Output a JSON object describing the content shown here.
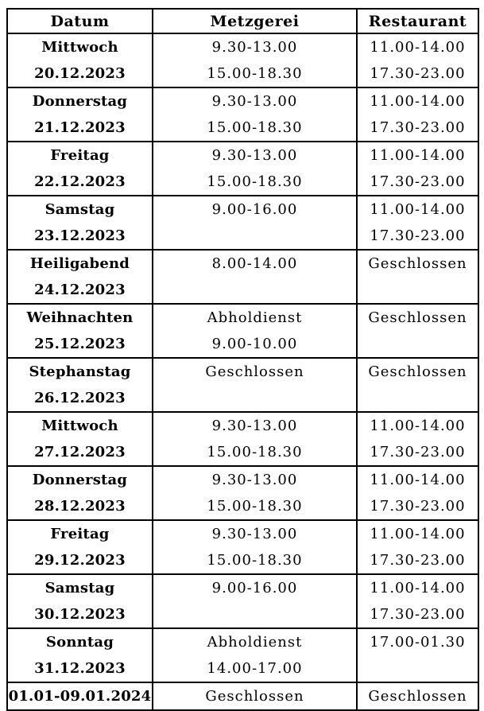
{
  "page": {
    "background_color": "#ffffff",
    "text_color": "#000000",
    "border_color": "#000000"
  },
  "table": {
    "columns": [
      {
        "key": "datum",
        "label": "Datum"
      },
      {
        "key": "metzgerei",
        "label": "Metzgerei"
      },
      {
        "key": "restaurant",
        "label": "Restaurant"
      }
    ],
    "rows": [
      {
        "datum": [
          "Mittwoch",
          "20.12.2023"
        ],
        "metzgerei": [
          "9.30-13.00",
          "15.00-18.30"
        ],
        "restaurant": [
          "11.00-14.00",
          "17.30-23.00"
        ]
      },
      {
        "datum": [
          "Donnerstag",
          "21.12.2023"
        ],
        "metzgerei": [
          "9.30-13.00",
          "15.00-18.30"
        ],
        "restaurant": [
          "11.00-14.00",
          "17.30-23.00"
        ]
      },
      {
        "datum": [
          "Freitag",
          "22.12.2023"
        ],
        "metzgerei": [
          "9.30-13.00",
          "15.00-18.30"
        ],
        "restaurant": [
          "11.00-14.00",
          "17.30-23.00"
        ]
      },
      {
        "datum": [
          "Samstag",
          "23.12.2023"
        ],
        "metzgerei": [
          "9.00-16.00"
        ],
        "restaurant": [
          "11.00-14.00",
          "17.30-23.00"
        ]
      },
      {
        "datum": [
          "Heiligabend",
          "24.12.2023"
        ],
        "metzgerei": [
          "8.00-14.00"
        ],
        "restaurant": [
          "Geschlossen"
        ]
      },
      {
        "datum": [
          "Weihnachten",
          "25.12.2023"
        ],
        "metzgerei": [
          "Abholdienst",
          "9.00-10.00"
        ],
        "restaurant": [
          "Geschlossen"
        ]
      },
      {
        "datum": [
          "Stephanstag",
          "26.12.2023"
        ],
        "metzgerei": [
          "Geschlossen"
        ],
        "restaurant": [
          "Geschlossen"
        ]
      },
      {
        "datum": [
          "Mittwoch",
          "27.12.2023"
        ],
        "metzgerei": [
          "9.30-13.00",
          "15.00-18.30"
        ],
        "restaurant": [
          "11.00-14.00",
          "17.30-23.00"
        ]
      },
      {
        "datum": [
          "Donnerstag",
          "28.12.2023"
        ],
        "metzgerei": [
          "9.30-13.00",
          "15.00-18.30"
        ],
        "restaurant": [
          "11.00-14.00",
          "17.30-23.00"
        ]
      },
      {
        "datum": [
          "Freitag",
          "29.12.2023"
        ],
        "metzgerei": [
          "9.30-13.00",
          "15.00-18.30"
        ],
        "restaurant": [
          "11.00-14.00",
          "17.30-23.00"
        ]
      },
      {
        "datum": [
          "Samstag",
          "30.12.2023"
        ],
        "metzgerei": [
          "9.00-16.00"
        ],
        "restaurant": [
          "11.00-14.00",
          "17.30-23.00"
        ]
      },
      {
        "datum": [
          "Sonntag",
          "31.12.2023"
        ],
        "metzgerei": [
          "Abholdienst",
          "14.00-17.00"
        ],
        "restaurant": [
          "17.00-01.30"
        ]
      },
      {
        "datum": [
          "01.01-09.01.2024"
        ],
        "metzgerei": [
          "Geschlossen"
        ],
        "restaurant": [
          "Geschlossen"
        ]
      }
    ]
  }
}
